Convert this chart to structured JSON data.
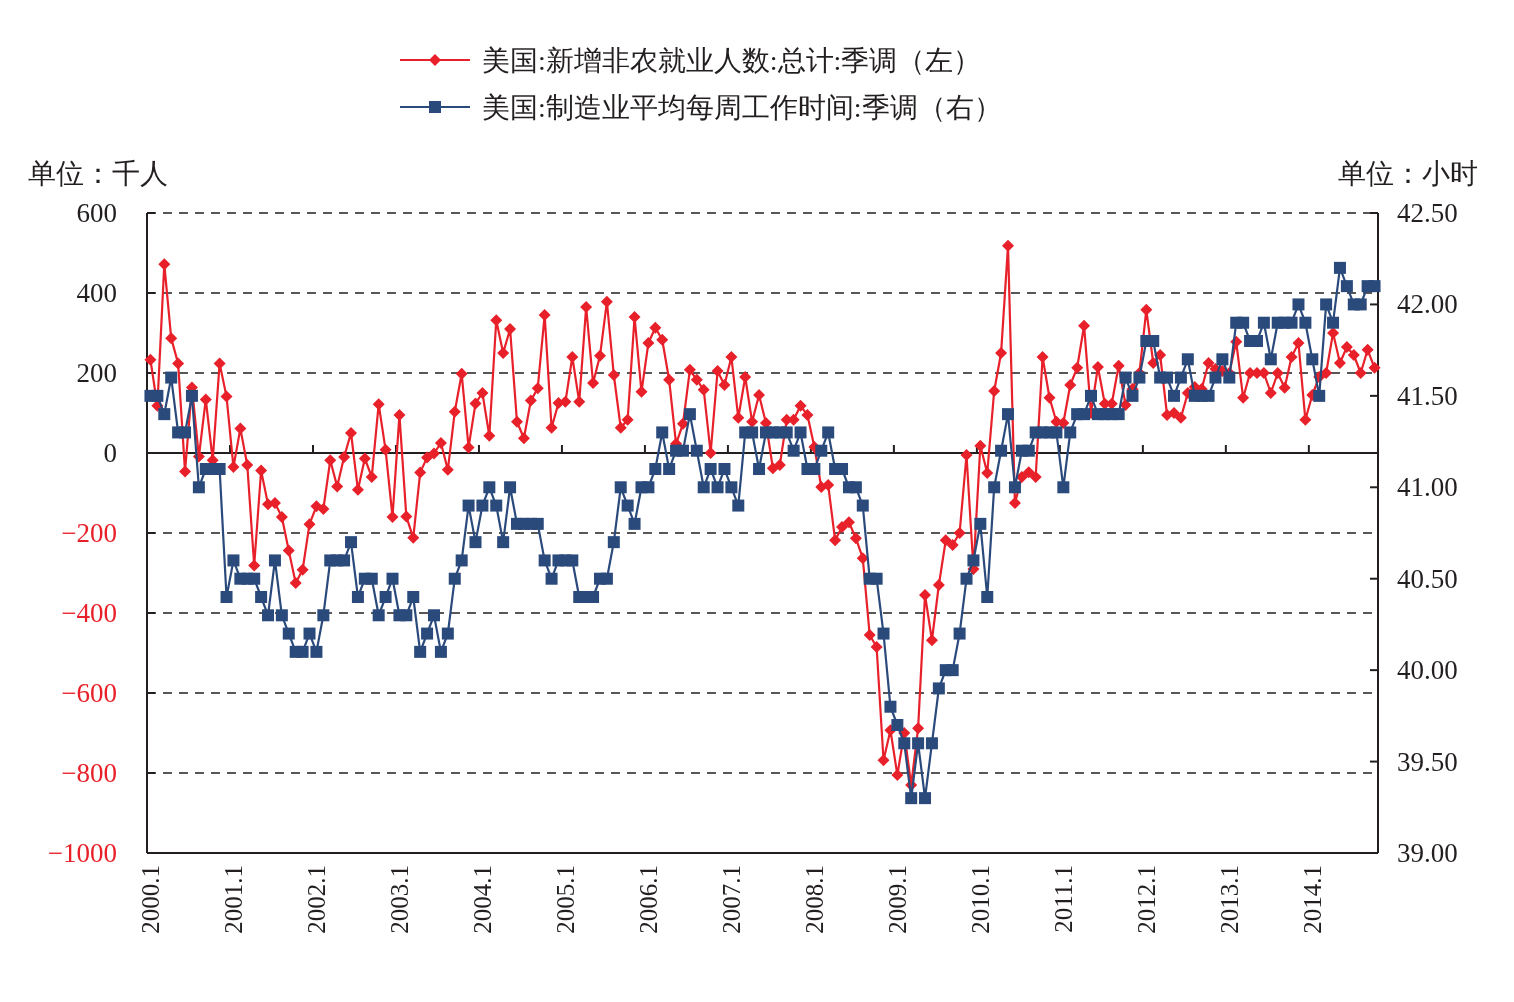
{
  "chart_data": {
    "type": "line",
    "categories": [
      "2000.1",
      null,
      null,
      null,
      null,
      null,
      null,
      null,
      null,
      null,
      null,
      null,
      "2001.1",
      null,
      null,
      null,
      null,
      null,
      null,
      null,
      null,
      null,
      null,
      null,
      "2002.1",
      null,
      null,
      null,
      null,
      null,
      null,
      null,
      null,
      null,
      null,
      null,
      "2003.1",
      null,
      null,
      null,
      null,
      null,
      null,
      null,
      null,
      null,
      null,
      null,
      "2004.1",
      null,
      null,
      null,
      null,
      null,
      null,
      null,
      null,
      null,
      null,
      null,
      "2005.1",
      null,
      null,
      null,
      null,
      null,
      null,
      null,
      null,
      null,
      null,
      null,
      "2006.1",
      null,
      null,
      null,
      null,
      null,
      null,
      null,
      null,
      null,
      null,
      null,
      "2007.1",
      null,
      null,
      null,
      null,
      null,
      null,
      null,
      null,
      null,
      null,
      null,
      "2008.1",
      null,
      null,
      null,
      null,
      null,
      null,
      null,
      null,
      null,
      null,
      null,
      "2009.1",
      null,
      null,
      null,
      null,
      null,
      null,
      null,
      null,
      null,
      null,
      null,
      "2010.1",
      null,
      null,
      null,
      null,
      null,
      null,
      null,
      null,
      null,
      null,
      null,
      "2011.1",
      null,
      null,
      null,
      null,
      null,
      null,
      null,
      null,
      null,
      null,
      null,
      "2012.1",
      null,
      null,
      null,
      null,
      null,
      null,
      null,
      null,
      null,
      null,
      null,
      "2013.1",
      null,
      null,
      null,
      null,
      null,
      null,
      null,
      null,
      null,
      null,
      null,
      "2014.1",
      null,
      null,
      null,
      null,
      null,
      null,
      null,
      null,
      null
    ],
    "series": [
      {
        "name": "美国:新增非农就业人数:总计:季调（左）",
        "color": "#e8202a",
        "marker": "diamond",
        "values": [
          233,
          118,
          472,
          287,
          224,
          -46,
          164,
          -9,
          134,
          -18,
          224,
          141,
          -35,
          61,
          -30,
          -281,
          -44,
          -128,
          -125,
          -160,
          -244,
          -325,
          -292,
          -178,
          -133,
          -140,
          -18,
          -84,
          -10,
          50,
          -92,
          -14,
          -60,
          122,
          8,
          -160,
          95,
          -159,
          -212,
          -49,
          -11,
          -1,
          25,
          -42,
          103,
          198,
          14,
          124,
          150,
          43,
          332,
          250,
          310,
          78,
          37,
          131,
          162,
          345,
          63,
          125,
          128,
          240,
          128,
          365,
          175,
          243,
          378,
          195,
          63,
          83,
          340,
          153,
          275,
          313,
          283,
          183,
          23,
          73,
          208,
          183,
          158,
          0,
          205,
          170,
          240,
          88,
          190,
          78,
          145,
          75,
          -38,
          -30,
          83,
          83,
          118,
          95,
          15,
          -85,
          -80,
          -218,
          -185,
          -173,
          -213,
          -263,
          -455,
          -485,
          -768,
          -693,
          -805,
          -700,
          -830,
          -688,
          -355,
          -468,
          -330,
          -218,
          -230,
          -200,
          -5,
          -290,
          18,
          -50,
          155,
          250,
          518,
          -125,
          -60,
          -48,
          -60,
          240,
          138,
          78,
          75,
          170,
          213,
          318,
          100,
          215,
          123,
          123,
          218,
          120,
          160,
          200,
          358,
          225,
          245,
          95,
          100,
          88,
          150,
          165,
          160,
          225,
          210,
          205,
          200,
          278,
          138,
          200,
          200,
          200,
          150,
          200,
          163,
          240,
          275,
          83,
          145,
          190,
          200,
          300,
          225,
          265,
          245,
          200,
          258,
          213
        ]
      },
      {
        "name": "美国:制造业平均每周工作时间:季调（右）",
        "color": "#2b4a7c",
        "marker": "square",
        "axis": "y2",
        "values": [
          41.5,
          41.5,
          41.4,
          41.6,
          41.3,
          41.3,
          41.5,
          41.0,
          41.1,
          41.1,
          41.1,
          40.4,
          40.6,
          40.5,
          40.5,
          40.5,
          40.4,
          40.3,
          40.6,
          40.3,
          40.2,
          40.1,
          40.1,
          40.2,
          40.1,
          40.3,
          40.6,
          40.6,
          40.6,
          40.7,
          40.4,
          40.5,
          40.5,
          40.3,
          40.4,
          40.5,
          40.3,
          40.3,
          40.4,
          40.1,
          40.2,
          40.3,
          40.1,
          40.2,
          40.5,
          40.6,
          40.9,
          40.7,
          40.9,
          41.0,
          40.9,
          40.7,
          41.0,
          40.8,
          40.8,
          40.8,
          40.8,
          40.6,
          40.5,
          40.6,
          40.6,
          40.6,
          40.4,
          40.4,
          40.4,
          40.5,
          40.5,
          40.7,
          41.0,
          40.9,
          40.8,
          41.0,
          41.0,
          41.1,
          41.3,
          41.1,
          41.2,
          41.2,
          41.4,
          41.2,
          41.0,
          41.1,
          41.0,
          41.1,
          41.0,
          40.9,
          41.3,
          41.3,
          41.1,
          41.3,
          41.3,
          41.3,
          41.3,
          41.2,
          41.3,
          41.1,
          41.1,
          41.2,
          41.3,
          41.1,
          41.1,
          41.0,
          41.0,
          40.9,
          40.5,
          40.5,
          40.2,
          39.8,
          39.7,
          39.6,
          39.3,
          39.6,
          39.3,
          39.6,
          39.9,
          40.0,
          40.0,
          40.2,
          40.5,
          40.6,
          40.8,
          40.4,
          41.0,
          41.2,
          41.4,
          41.0,
          41.2,
          41.2,
          41.3,
          41.3,
          41.3,
          41.3,
          41.0,
          41.3,
          41.4,
          41.4,
          41.5,
          41.4,
          41.4,
          41.4,
          41.4,
          41.6,
          41.5,
          41.6,
          41.8,
          41.8,
          41.6,
          41.6,
          41.5,
          41.6,
          41.7,
          41.5,
          41.5,
          41.5,
          41.6,
          41.7,
          41.6,
          41.9,
          41.9,
          41.8,
          41.8,
          41.9,
          41.7,
          41.9,
          41.9,
          41.9,
          42.0,
          41.9,
          41.7,
          41.5,
          42.0,
          41.9,
          42.2,
          42.1,
          42.0,
          42.0,
          42.1,
          42.1
        ]
      }
    ],
    "ylabel": "单位：千人",
    "y2label": "单位：小时",
    "ylim": [
      -1000,
      600
    ],
    "yticks": [
      {
        "value": -1000,
        "label": "−1000"
      },
      {
        "value": -800,
        "label": "−800"
      },
      {
        "value": -600,
        "label": "−600"
      },
      {
        "value": -400,
        "label": "−400"
      },
      {
        "value": -200,
        "label": "−200"
      },
      0,
      200,
      400,
      600
    ],
    "y2lim": [
      39,
      42.5
    ],
    "y2ticks": [
      {
        "value": 39,
        "label": "39.00"
      },
      {
        "value": 39.5,
        "label": "39.50"
      },
      {
        "value": 40,
        "label": "40.00"
      },
      {
        "value": 40.5,
        "label": "40.50"
      },
      {
        "value": 41,
        "label": "41.00"
      },
      {
        "value": 41.5,
        "label": "41.50"
      },
      {
        "value": 42,
        "label": "42.00"
      },
      {
        "value": 42.5,
        "label": "42.50"
      }
    ],
    "grid": "y",
    "legend": "top"
  }
}
